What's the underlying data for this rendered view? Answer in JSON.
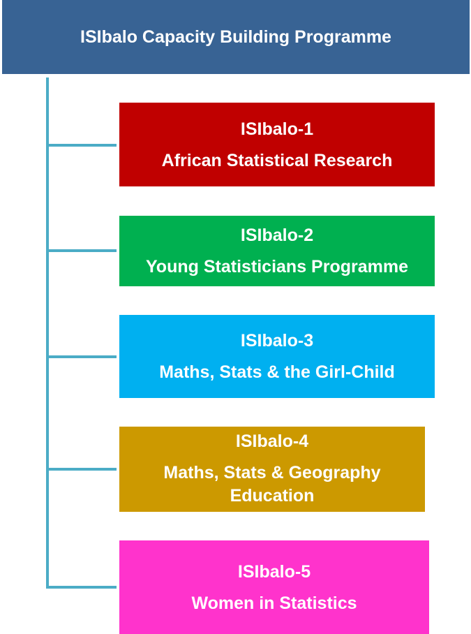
{
  "title": "ISIbalo Capacity Building Programme",
  "colors": {
    "header": "#386394",
    "connector": "#4bacc6"
  },
  "items": [
    {
      "name": "ISIbalo-1",
      "subtitle": "African Statistical Research",
      "color": "#c00000"
    },
    {
      "name": "ISIbalo-2",
      "subtitle": "Young Statisticians Programme",
      "color": "#00b050"
    },
    {
      "name": "ISIbalo-3",
      "subtitle": "Maths, Stats & the Girl-Child",
      "color": "#00b0f0"
    },
    {
      "name": "ISIbalo-4",
      "subtitle": "Maths, Stats & Geography Education",
      "color": "#cc9900"
    },
    {
      "name": "ISIbalo-5",
      "subtitle": "Women in Statistics",
      "color": "#ff33cc"
    }
  ]
}
